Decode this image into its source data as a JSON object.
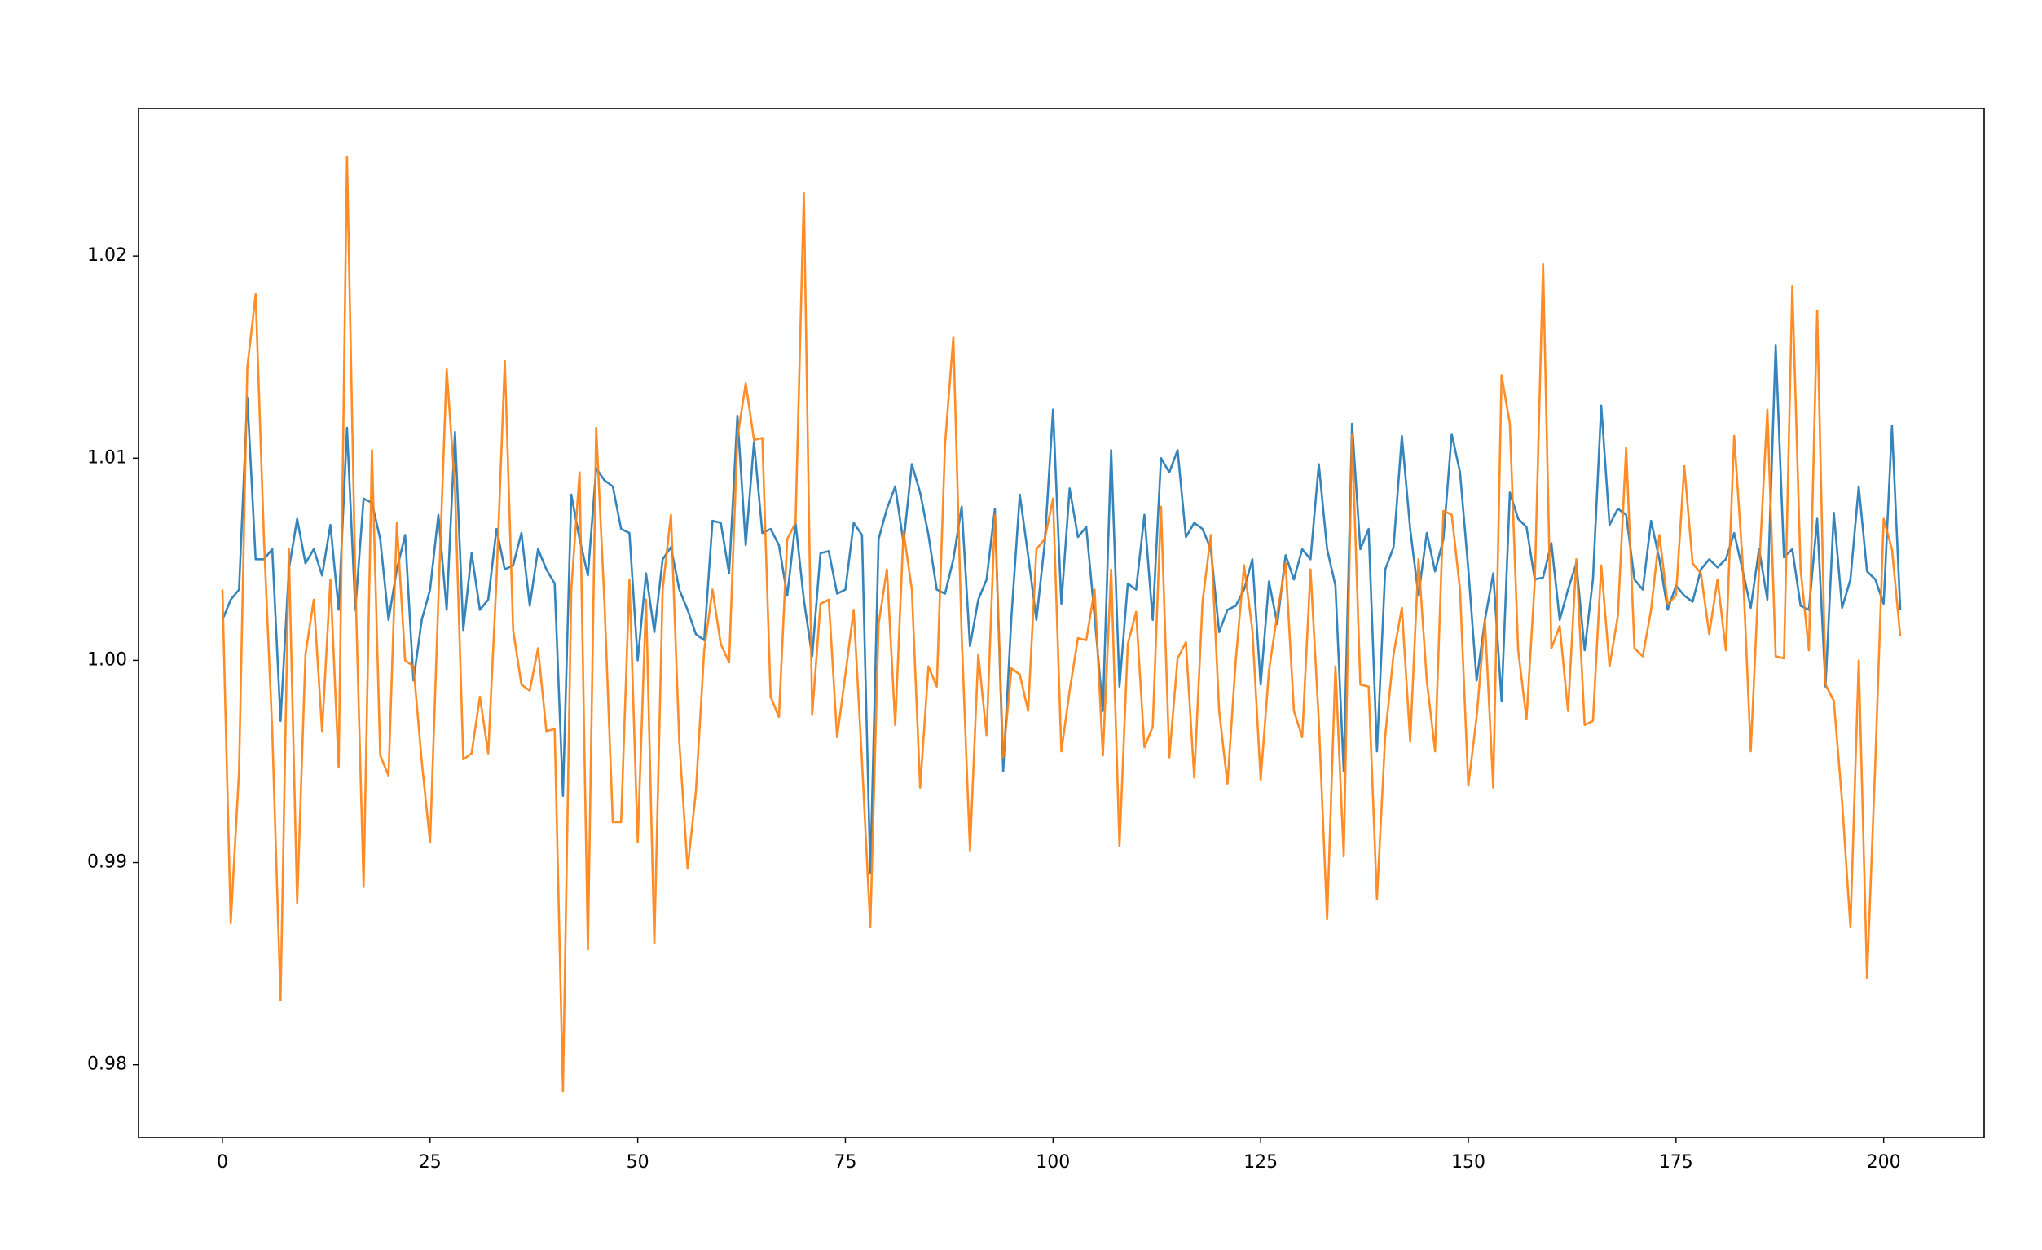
{
  "chart_data": {
    "type": "line",
    "x": [
      0,
      1,
      2,
      3,
      4,
      5,
      6,
      7,
      8,
      9,
      10,
      11,
      12,
      13,
      14,
      15,
      16,
      17,
      18,
      19,
      20,
      21,
      22,
      23,
      24,
      25,
      26,
      27,
      28,
      29,
      30,
      31,
      32,
      33,
      34,
      35,
      36,
      37,
      38,
      39,
      40,
      41,
      42,
      43,
      44,
      45,
      46,
      47,
      48,
      49,
      50,
      51,
      52,
      53,
      54,
      55,
      56,
      57,
      58,
      59,
      60,
      61,
      62,
      63,
      64,
      65,
      66,
      67,
      68,
      69,
      70,
      71,
      72,
      73,
      74,
      75,
      76,
      77,
      78,
      79,
      80,
      81,
      82,
      83,
      84,
      85,
      86,
      87,
      88,
      89,
      90,
      91,
      92,
      93,
      94,
      95,
      96,
      97,
      98,
      99,
      100,
      101,
      102,
      103,
      104,
      105,
      106,
      107,
      108,
      109,
      110,
      111,
      112,
      113,
      114,
      115,
      116,
      117,
      118,
      119,
      120,
      121,
      122,
      123,
      124,
      125,
      126,
      127,
      128,
      129,
      130,
      131,
      132,
      133,
      134,
      135,
      136,
      137,
      138,
      139,
      140,
      141,
      142,
      143,
      144,
      145,
      146,
      147,
      148,
      149,
      150,
      151,
      152,
      153,
      154,
      155,
      156,
      157,
      158,
      159,
      160,
      161,
      162,
      163,
      164,
      165,
      166,
      167,
      168,
      169,
      170,
      171,
      172,
      173,
      174,
      175,
      176,
      177,
      178,
      179,
      180,
      181,
      182,
      183,
      184,
      185,
      186,
      187,
      188,
      189,
      190,
      191,
      192,
      193,
      194,
      195,
      196,
      197,
      198,
      199,
      200,
      201,
      202
    ],
    "series": [
      {
        "color": "#1f77b4",
        "values": [
          1.002,
          1.003,
          1.0035,
          1.013,
          1.005,
          1.005,
          1.0055,
          0.997,
          1.0045,
          1.007,
          1.0048,
          1.0055,
          1.0042,
          1.0067,
          1.0025,
          1.0115,
          1.0025,
          1.008,
          1.0078,
          1.006,
          1.002,
          1.0045,
          1.0062,
          0.999,
          1.002,
          1.0035,
          1.0072,
          1.0025,
          1.0113,
          1.0015,
          1.0053,
          1.0025,
          1.003,
          1.0065,
          1.0045,
          1.0047,
          1.0063,
          1.0027,
          1.0055,
          1.0045,
          1.0038,
          0.9933,
          1.0082,
          1.006,
          1.0042,
          1.0095,
          1.0089,
          1.0086,
          1.0065,
          1.0063,
          1.0,
          1.0043,
          1.0014,
          1.005,
          1.0056,
          1.0035,
          1.0025,
          1.0013,
          1.001,
          1.0069,
          1.0068,
          1.0043,
          1.0121,
          1.0057,
          1.0108,
          1.0063,
          1.0065,
          1.0057,
          1.0032,
          1.0068,
          1.003,
          1.0002,
          1.0053,
          1.0054,
          1.0033,
          1.0035,
          1.0068,
          1.0062,
          0.9895,
          1.006,
          1.0075,
          1.0086,
          1.0058,
          1.0097,
          1.0083,
          1.0062,
          1.0035,
          1.0033,
          1.005,
          1.0076,
          1.0007,
          1.003,
          1.004,
          1.0075,
          0.9945,
          1.0022,
          1.0082,
          1.0052,
          1.002,
          1.0058,
          1.0124,
          1.0028,
          1.0085,
          1.0061,
          1.0066,
          1.0022,
          0.9975,
          1.0104,
          0.9987,
          1.0038,
          1.0035,
          1.0072,
          1.002,
          1.01,
          1.0093,
          1.0104,
          1.0061,
          1.0068,
          1.0065,
          1.0055,
          1.0014,
          1.0025,
          1.0027,
          1.0035,
          1.005,
          0.9988,
          1.0039,
          1.0018,
          1.0052,
          1.004,
          1.0055,
          1.005,
          1.0097,
          1.0055,
          1.0037,
          0.9945,
          1.0117,
          1.0055,
          1.0065,
          0.9955,
          1.0045,
          1.0056,
          1.0111,
          1.0065,
          1.0032,
          1.0063,
          1.0044,
          1.006,
          1.0112,
          1.0093,
          1.0045,
          0.999,
          1.002,
          1.0043,
          0.998,
          1.0083,
          1.007,
          1.0066,
          1.004,
          1.0041,
          1.0058,
          1.002,
          1.0035,
          1.0048,
          1.0005,
          1.004,
          1.0126,
          1.0067,
          1.0075,
          1.0072,
          1.004,
          1.0035,
          1.0069,
          1.005,
          1.0025,
          1.0037,
          1.0032,
          1.0029,
          1.0045,
          1.005,
          1.0046,
          1.005,
          1.0063,
          1.0045,
          1.0026,
          1.0055,
          1.003,
          1.0156,
          1.0051,
          1.0055,
          1.0027,
          1.0025,
          1.007,
          0.9987,
          1.0073,
          1.0026,
          1.004,
          1.0086,
          1.0044,
          1.004,
          1.0028,
          1.0116,
          1.0025
        ]
      },
      {
        "color": "#ff7f0e",
        "values": [
          1.0035,
          0.987,
          0.9945,
          1.0145,
          1.0181,
          1.006,
          0.9965,
          0.9832,
          1.0055,
          0.988,
          1.0003,
          1.003,
          0.9965,
          1.004,
          0.9947,
          1.0249,
          1.004,
          0.9888,
          1.0104,
          0.9953,
          0.9943,
          1.0068,
          1.0,
          0.9997,
          0.995,
          0.991,
          1.003,
          1.0144,
          1.0085,
          0.9951,
          0.9954,
          0.9982,
          0.9954,
          1.004,
          1.0148,
          1.0015,
          0.9988,
          0.9985,
          1.0006,
          0.9965,
          0.9966,
          0.9787,
          1.0035,
          1.0093,
          0.9857,
          1.0115,
          1.0028,
          0.992,
          0.992,
          1.004,
          0.991,
          1.003,
          0.986,
          1.0035,
          1.0072,
          0.996,
          0.9897,
          0.9935,
          1.0005,
          1.0035,
          1.0008,
          0.9999,
          1.011,
          1.0137,
          1.0109,
          1.011,
          0.9982,
          0.9972,
          1.006,
          1.0068,
          1.0231,
          0.9973,
          1.0028,
          1.003,
          0.9962,
          0.9993,
          1.0025,
          0.995,
          0.9868,
          1.0018,
          1.0045,
          0.9968,
          1.0064,
          1.0035,
          0.9937,
          0.9997,
          0.9987,
          1.0107,
          1.016,
          1.0012,
          0.9906,
          1.0003,
          0.9963,
          1.0072,
          0.9952,
          0.9996,
          0.9993,
          0.9975,
          1.0055,
          1.006,
          1.008,
          0.9955,
          0.9985,
          1.0011,
          1.001,
          1.0035,
          0.9953,
          1.0045,
          0.9908,
          1.0008,
          1.0024,
          0.9957,
          0.9967,
          1.0076,
          0.9952,
          1.0001,
          1.0009,
          0.9942,
          1.0029,
          1.0062,
          0.9975,
          0.9939,
          1.0,
          1.0047,
          1.0015,
          0.9941,
          0.9995,
          1.0023,
          1.0048,
          0.9975,
          0.9962,
          1.0045,
          0.997,
          0.9872,
          0.9997,
          0.9903,
          1.0112,
          0.9988,
          0.9987,
          0.9882,
          0.9963,
          1.0003,
          1.0026,
          0.996,
          1.005,
          0.999,
          0.9955,
          1.0074,
          1.0072,
          1.0035,
          0.9938,
          0.9972,
          1.002,
          0.9937,
          1.0141,
          1.0117,
          1.0005,
          0.9971,
          1.0039,
          1.0196,
          1.0006,
          1.0017,
          0.9975,
          1.005,
          0.9968,
          0.997,
          1.0047,
          0.9997,
          1.0022,
          1.0105,
          1.0006,
          1.0002,
          1.0025,
          1.0062,
          1.0028,
          1.0032,
          1.0096,
          1.0048,
          1.0043,
          1.0013,
          1.004,
          1.0005,
          1.0111,
          1.005,
          0.9955,
          1.0045,
          1.0124,
          1.0002,
          1.0001,
          1.0185,
          1.0045,
          1.0005,
          1.0173,
          0.9988,
          0.998,
          0.993,
          0.9868,
          1.0,
          0.9843,
          0.995,
          1.007,
          1.0055,
          1.0012
        ]
      }
    ],
    "xlim": [
      -10.1,
      212.1
    ],
    "ylim": [
      0.9764,
      1.0273
    ],
    "xticks": [
      0,
      25,
      50,
      75,
      100,
      125,
      150,
      175,
      200
    ],
    "yticks": [
      0.98,
      0.99,
      {
        "value": 1,
        "label": "1.00"
      },
      1.01,
      1.02
    ]
  }
}
